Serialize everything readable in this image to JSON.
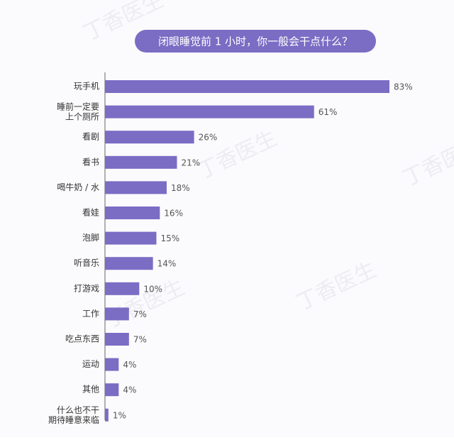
{
  "watermark": "丁香医生",
  "chart_data": {
    "type": "bar",
    "orientation": "horizontal",
    "title": "闭眼睡觉前 1 小时，你一般会干点什么？",
    "categories": [
      "玩手机",
      "睡前一定要\n上个厕所",
      "看剧",
      "看书",
      "喝牛奶 / 水",
      "看娃",
      "泡脚",
      "听音乐",
      "打游戏",
      "工作",
      "吃点东西",
      "运动",
      "其他",
      "什么也不干\n期待睡意来临"
    ],
    "values": [
      83,
      61,
      26,
      21,
      18,
      16,
      15,
      14,
      10,
      7,
      7,
      4,
      4,
      1
    ],
    "value_labels": [
      "83%",
      "61%",
      "26%",
      "21%",
      "18%",
      "16%",
      "15%",
      "14%",
      "10%",
      "7%",
      "7%",
      "4%",
      "4%",
      "1%"
    ],
    "color": "#7b6cc4"
  }
}
